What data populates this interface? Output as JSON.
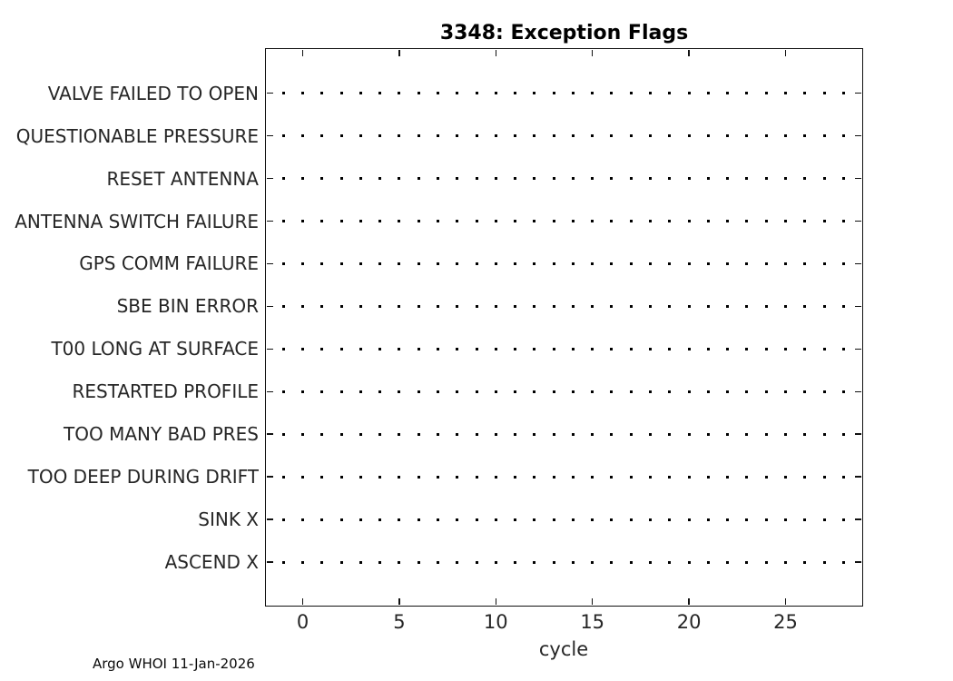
{
  "title": "3348: Exception Flags",
  "footer": "Argo WHOI 11-Jan-2026",
  "colors": {
    "background": "#ffffff",
    "axis": "#111111",
    "marker": "#000000",
    "axis_text": "#262626",
    "title_text": "#000000"
  },
  "chart_data": {
    "type": "scatter",
    "title": "3348: Exception Flags",
    "xlabel": "cycle",
    "ylabel": "",
    "legend": "none",
    "grid": "off",
    "categories_top_to_bottom": [
      "VALVE FAILED TO OPEN",
      "QUESTIONABLE PRESSURE",
      "RESET ANTENNA",
      "ANTENNA SWITCH FAILURE",
      "GPS COMM FAILURE",
      "SBE BIN ERROR",
      "T00 LONG AT SURFACE",
      "RESTARTED PROFILE",
      "TOO MANY BAD PRES",
      "TOO DEEP DURING DRIFT",
      "SINK X",
      "ASCEND X"
    ],
    "x_ticks": [
      0,
      5,
      10,
      15,
      20,
      25
    ],
    "x_tick_labels": [
      "0",
      "5",
      "10",
      "15",
      "20",
      "25"
    ],
    "xlim": [
      -2,
      29
    ],
    "cycles": [
      -1,
      0,
      1,
      2,
      3,
      4,
      5,
      6,
      7,
      8,
      9,
      10,
      11,
      12,
      13,
      14,
      15,
      16,
      17,
      18,
      19,
      20,
      21,
      22,
      23,
      24,
      25,
      26,
      27,
      28
    ],
    "marker": "dot",
    "series_note": "every flag category row shows a small dot marker at each cycle from -1 to 28; no exception flags are raised"
  }
}
